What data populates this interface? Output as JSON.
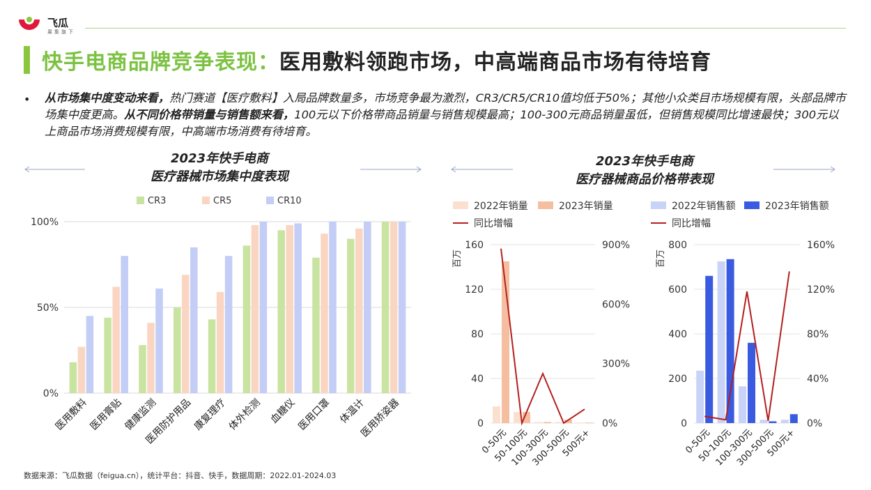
{
  "brand": {
    "name": "飞瓜",
    "tagline": "果集旗下"
  },
  "title": {
    "highlight": "快手电商品牌竞争表现：",
    "rest": "医用敷料领跑市场，中高端商品市场有待培育"
  },
  "paragraph": {
    "bold1": "从市场集中度变动来看，",
    "text1": "热门赛道【医疗敷料】入局品牌数量多，市场竞争最为激烈，CR3/CR5/CR10值均低于50%；其他小众类目市场规模有限，头部品牌市场集中度更高。",
    "bold2": "从不同价格带销量与销售额来看，",
    "text2": "100元以下价格带商品销量与销售规模最高；100-300元商品销量虽低，但销售规模同比增速最快；300元以上商品市场消费规模有限，中高端市场消费有待培育。"
  },
  "left_chart_title": {
    "line1": "2023年快手电商",
    "line2": "医疗器械市场集中度表现"
  },
  "right_chart_title": {
    "line1": "2023年快手电商",
    "line2": "医疗器械商品价格带表现"
  },
  "source": "数据来源：飞瓜数据（feigua.cn），统计平台：抖音、快手，数据周期：2022.01-2024.03",
  "colors": {
    "accent": "#8cc63f",
    "cr3": "#c9e3a0",
    "cr5": "#fad6c2",
    "cr10": "#c3cdf5",
    "vol22": "#fbe0d0",
    "vol23": "#f6bea0",
    "rev22": "#c9d3f7",
    "rev23": "#3a5be0",
    "yoy": "#b41e1e"
  },
  "chart_data": [
    {
      "type": "bar",
      "title": "2023年快手电商 医疗器械市场集中度表现",
      "categories": [
        "医用敷料",
        "医用膏贴",
        "健康监测",
        "医用防护用品",
        "康复理疗",
        "体外检测",
        "血糖仪",
        "医用口罩",
        "体温计",
        "医用矫姿器"
      ],
      "series": [
        {
          "name": "CR3",
          "values": [
            18,
            44,
            28,
            50,
            43,
            86,
            95,
            79,
            90,
            100
          ]
        },
        {
          "name": "CR5",
          "values": [
            27,
            62,
            41,
            69,
            59,
            98,
            98,
            93,
            96,
            100
          ]
        },
        {
          "name": "CR10",
          "values": [
            45,
            80,
            61,
            85,
            80,
            100,
            99,
            100,
            100,
            100
          ]
        }
      ],
      "yticks": [
        "0%",
        "50%",
        "100%"
      ],
      "ylim": [
        0,
        100
      ],
      "legend": "top"
    },
    {
      "type": "bar",
      "title": "2023年快手电商 医疗器械商品价格带表现（销量）",
      "categories": [
        "0-50元",
        "50-100元",
        "100-300元",
        "300-500元",
        "500元+"
      ],
      "series": [
        {
          "name": "2022年销量",
          "values": [
            15,
            10,
            1,
            1,
            0.5
          ]
        },
        {
          "name": "2023年销量",
          "values": [
            145,
            10,
            1,
            3,
            0.5
          ]
        },
        {
          "name": "同比增幅",
          "axis": "right",
          "values": [
            880,
            0,
            250,
            0,
            70
          ]
        }
      ],
      "ylabel": "百万",
      "yticks_left": [
        "0",
        "40",
        "80",
        "120",
        "160"
      ],
      "yticks_right": [
        "0%",
        "300%",
        "600%",
        "900%"
      ],
      "ylim_left": [
        0,
        160
      ],
      "ylim_right": [
        0,
        900
      ],
      "legend": "top"
    },
    {
      "type": "bar",
      "title": "2023年快手电商 医疗器械商品价格带表现（销售额）",
      "categories": [
        "0-50元",
        "50-100元",
        "100-300元",
        "300-500元",
        "500元+"
      ],
      "series": [
        {
          "name": "2022年销售额",
          "values": [
            235,
            725,
            165,
            15,
            15
          ]
        },
        {
          "name": "2023年销售额",
          "values": [
            660,
            735,
            360,
            8,
            40
          ]
        },
        {
          "name": "同比增幅",
          "axis": "right",
          "values": [
            6,
            3,
            118,
            2,
            136
          ]
        }
      ],
      "ylabel": "百万",
      "yticks_left": [
        "0",
        "200",
        "400",
        "600",
        "800"
      ],
      "yticks_right": [
        "0%",
        "40%",
        "80%",
        "120%",
        "160%"
      ],
      "ylim_left": [
        0,
        800
      ],
      "ylim_right": [
        0,
        160
      ],
      "legend": "top"
    }
  ]
}
